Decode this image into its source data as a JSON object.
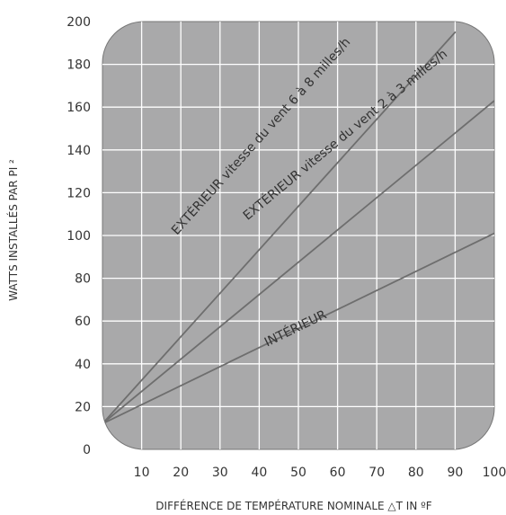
{
  "chart_data": {
    "type": "line",
    "ylabel": "WATTS INSTALLÉS PAR PI ²",
    "xlabel": "DIFFÉRENCE DE TEMPÉRATURE NOMINALE  △T IN ºF",
    "xlim": [
      0,
      100
    ],
    "ylim": [
      0,
      200
    ],
    "x_ticks": [
      10,
      20,
      30,
      40,
      50,
      60,
      70,
      80,
      90,
      100
    ],
    "y_ticks": [
      0,
      20,
      40,
      60,
      80,
      100,
      120,
      140,
      160,
      180,
      200
    ],
    "grid": true,
    "series": [
      {
        "name": "EXTÉRIEUR vitesse du vent 6 à 8 milles/h",
        "x": [
          0,
          90
        ],
        "y": [
          12,
          195
        ],
        "label_at": [
          19,
          100
        ]
      },
      {
        "name": "EXTÉRIEUR vitesse du vent 2 à 3 milles/h",
        "x": [
          0,
          100
        ],
        "y": [
          12,
          163
        ],
        "label_at": [
          37,
          107
        ]
      },
      {
        "name": "INTÉRIEUR",
        "x": [
          0,
          100
        ],
        "y": [
          12,
          101
        ],
        "label_at": [
          42,
          48
        ]
      }
    ],
    "colors": {
      "plot_fill": "#a9a9aa",
      "grid": "#ffffff",
      "lines": "#6e6e6e",
      "border": "#777777"
    }
  }
}
